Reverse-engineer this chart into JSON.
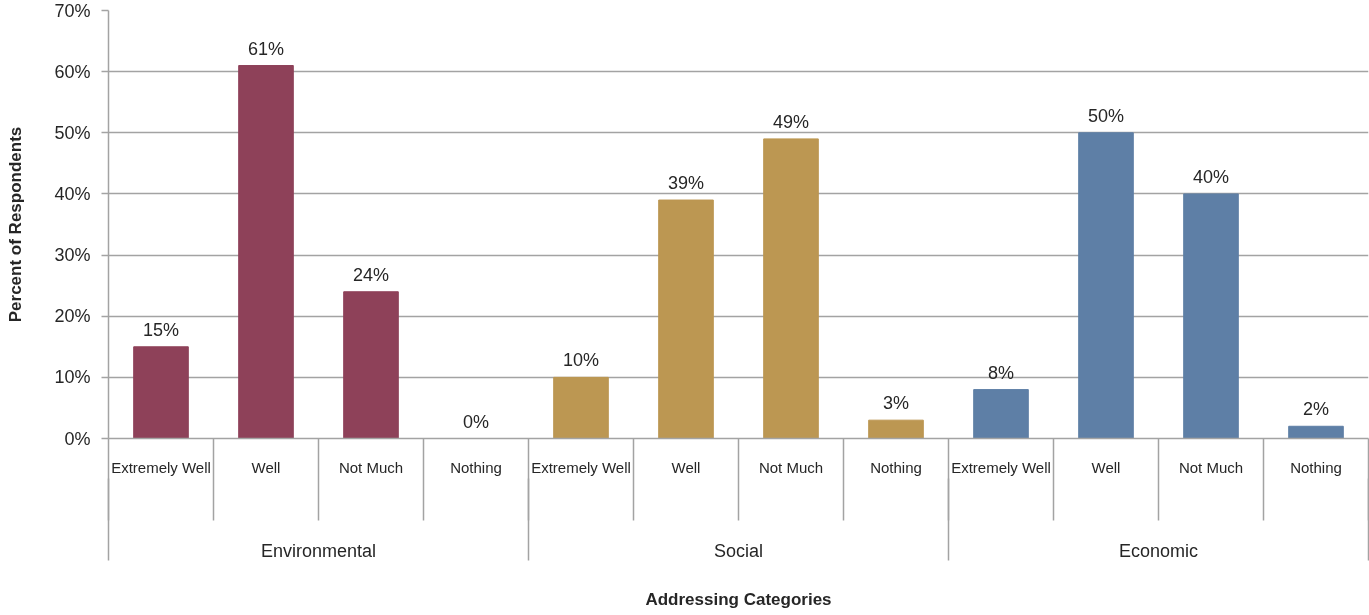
{
  "chart_data": {
    "type": "bar",
    "xlabel": "Addressing Categories",
    "ylabel": "Percent of Respondents",
    "categories": [
      "Environmental",
      "Social",
      "Economic"
    ],
    "series": [
      {
        "name": "Extremely Well",
        "colors": [
          "#8e4159",
          "#bc9752",
          "#5e7fa6"
        ],
        "values": [
          15,
          10,
          8
        ],
        "value_labels": [
          "15%",
          "10%",
          "8%"
        ]
      },
      {
        "name": "Well",
        "colors": [
          "#8e4159",
          "#bc9752",
          "#5e7fa6"
        ],
        "values": [
          61,
          39,
          50
        ],
        "value_labels": [
          "61%",
          "39%",
          "50%"
        ]
      },
      {
        "name": "Not Much",
        "colors": [
          "#8e4159",
          "#bc9752",
          "#5e7fa6"
        ],
        "values": [
          24,
          49,
          40
        ],
        "value_labels": [
          "24%",
          "49%",
          "40%"
        ]
      },
      {
        "name": "Nothing",
        "colors": [
          "#8e4159",
          "#bc9752",
          "#5e7fa6"
        ],
        "values": [
          0,
          3,
          2
        ],
        "value_labels": [
          "0%",
          "3%",
          "2%"
        ]
      }
    ],
    "ylim": [
      0,
      70
    ],
    "yticks": [
      {
        "value": 0,
        "label": "0%"
      },
      {
        "value": 10,
        "label": "10%"
      },
      {
        "value": 20,
        "label": "20%"
      },
      {
        "value": 30,
        "label": "30%"
      },
      {
        "value": 40,
        "label": "40%"
      },
      {
        "value": 50,
        "label": "50%"
      },
      {
        "value": 60,
        "label": "60%"
      },
      {
        "value": 70,
        "label": "70%"
      }
    ],
    "grid": "y"
  }
}
